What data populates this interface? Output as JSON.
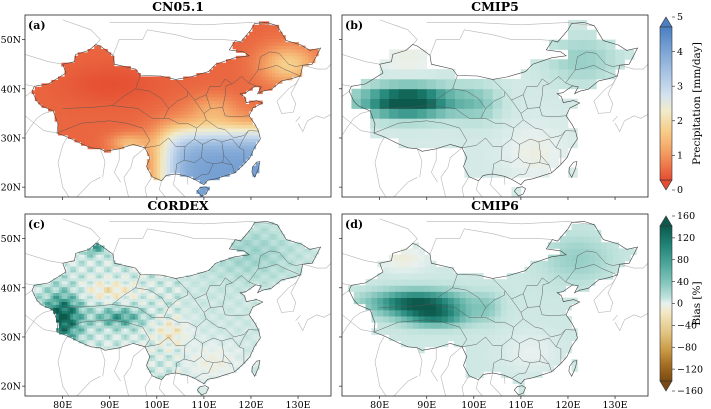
{
  "panels": [
    {
      "id": "a",
      "letter": "(a)",
      "title": "CN05.1"
    },
    {
      "id": "b",
      "letter": "(b)",
      "title": "CMIP5"
    },
    {
      "id": "c",
      "letter": "(c)",
      "title": "CORDEX"
    },
    {
      "id": "d",
      "letter": "(d)",
      "title": "CMIP6"
    }
  ],
  "axes": {
    "lon_ticks": [
      "80E",
      "90E",
      "100E",
      "110E",
      "120E",
      "130E"
    ],
    "lat_ticks": [
      "50N",
      "40N",
      "30N",
      "20N"
    ]
  },
  "colorbars": {
    "precip": {
      "label": "Precipitation [mm/day]",
      "ticks": [
        "5",
        "4",
        "3",
        "2",
        "1",
        "0"
      ],
      "colors": [
        "#4a7fc2",
        "#7aa3d4",
        "#a8c4e3",
        "#d5e3ef",
        "#f1ebc9",
        "#f7cd89",
        "#f4a567",
        "#ee7a4c",
        "#e44d31"
      ]
    },
    "bias": {
      "label": "Bias [%]",
      "ticks": [
        "160",
        "120",
        "80",
        "40",
        "0",
        "−40",
        "−80",
        "−120",
        "−160"
      ],
      "colors": [
        "#0d5a4d",
        "#1f8375",
        "#4fa79b",
        "#86c7bd",
        "#bfe2dc",
        "#e8f1ef",
        "#f3e7c3",
        "#e3c786",
        "#c99a45",
        "#a26c22",
        "#7a4a12"
      ]
    }
  }
}
